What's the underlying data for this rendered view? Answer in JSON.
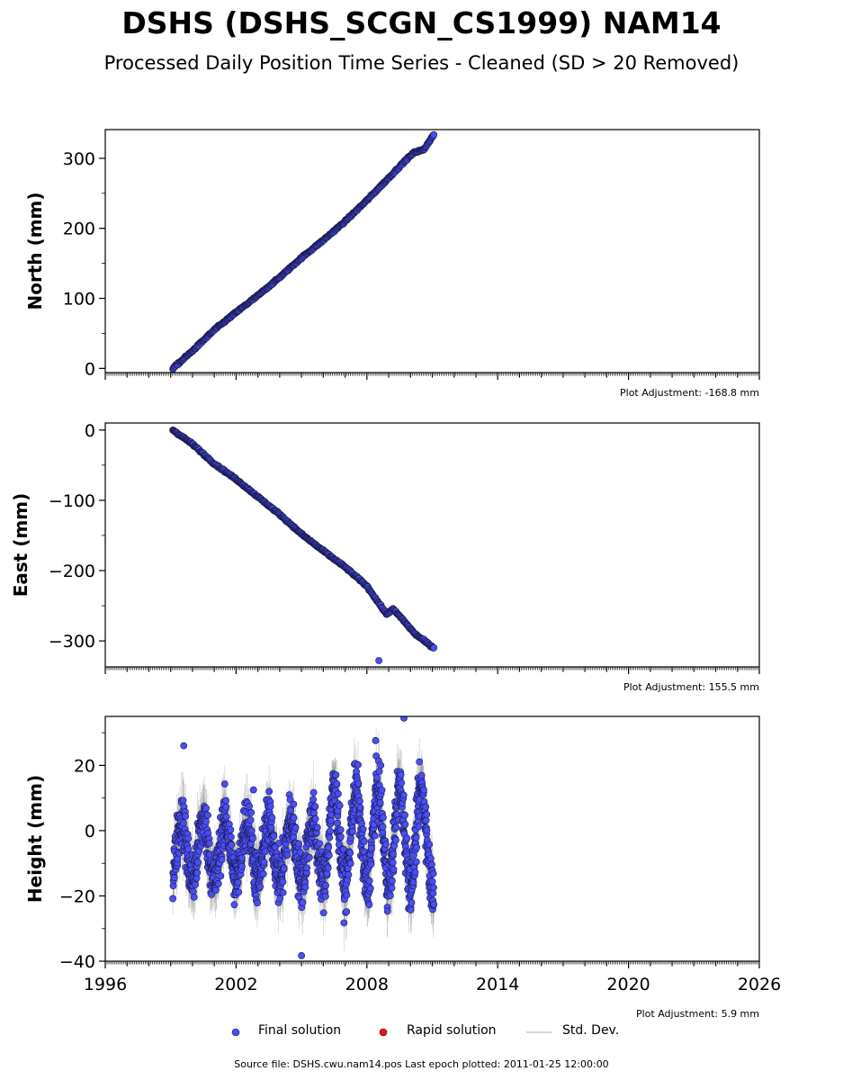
{
  "title": "DSHS (DSHS_SCGN_CS1999) NAM14",
  "subtitle": "Processed Daily Position Time Series - Cleaned (SD > 20 Removed)",
  "legend": {
    "final": "Final solution",
    "rapid": "Rapid solution",
    "std": "Std. Dev."
  },
  "footer": "Source file: DSHS.cwu.nam14.pos  Last epoch plotted: 2011-01-25 12:00:00",
  "colors": {
    "final": "#4a4ef5",
    "rapid": "#e8141e",
    "std": "#c8c8c8",
    "marker_edge": "#1a1a4a"
  },
  "chart_data": [
    {
      "type": "scatter",
      "name": "north",
      "ylabel": "North (mm)",
      "adjustment": "Plot Adjustment: -168.8 mm",
      "xlim": [
        1996,
        2026
      ],
      "ylim": [
        -6,
        341
      ],
      "yticks": [
        0,
        100,
        200,
        300
      ],
      "ytick_labels": [
        "0",
        "100",
        "200",
        "300"
      ],
      "trend": [
        [
          1999.1,
          0
        ],
        [
          2000.0,
          25
        ],
        [
          2001.0,
          55
        ],
        [
          2002.0,
          80
        ],
        [
          2003.0,
          104
        ],
        [
          2004.0,
          130
        ],
        [
          2005.0,
          158
        ],
        [
          2006.0,
          183
        ],
        [
          2007.0,
          210
        ],
        [
          2008.0,
          240
        ],
        [
          2009.0,
          272
        ],
        [
          2009.8,
          298
        ],
        [
          2010.2,
          309
        ],
        [
          2010.6,
          312
        ],
        [
          2011.07,
          334
        ]
      ],
      "outliers": []
    },
    {
      "type": "scatter",
      "name": "east",
      "ylabel": "East (mm)",
      "adjustment": "Plot Adjustment: 155.5 mm",
      "xlim": [
        1996,
        2026
      ],
      "ylim": [
        -337,
        10
      ],
      "yticks": [
        0,
        -100,
        -200,
        -300
      ],
      "ytick_labels": [
        "0",
        "−100",
        "−200",
        "−300"
      ],
      "trend": [
        [
          1999.1,
          0
        ],
        [
          2000.0,
          -20
        ],
        [
          2001.0,
          -48
        ],
        [
          2002.0,
          -70
        ],
        [
          2003.0,
          -95
        ],
        [
          2004.0,
          -120
        ],
        [
          2005.0,
          -148
        ],
        [
          2006.0,
          -172
        ],
        [
          2007.0,
          -195
        ],
        [
          2008.0,
          -222
        ],
        [
          2008.9,
          -262
        ],
        [
          2009.2,
          -255
        ],
        [
          2009.6,
          -268
        ],
        [
          2010.2,
          -290
        ],
        [
          2011.07,
          -310
        ]
      ],
      "outliers": [
        [
          2008.55,
          -328
        ]
      ]
    },
    {
      "type": "scatter",
      "name": "height",
      "ylabel": "Height (mm)",
      "adjustment": "Plot Adjustment: 5.9 mm",
      "xlim": [
        1996,
        2026
      ],
      "ylim": [
        -40,
        35
      ],
      "yticks": [
        -40,
        -20,
        0,
        20
      ],
      "ytick_labels": [
        "−40",
        "−20",
        "0",
        "20"
      ],
      "xticks": [
        1996,
        2002,
        2008,
        2014,
        2020,
        2026
      ],
      "xtick_labels": [
        "1996",
        "2002",
        "2008",
        "2014",
        "2020",
        "2026"
      ],
      "time_range": [
        1999.1,
        2011.07
      ],
      "annual_amplitude": 9,
      "noise": 6,
      "outliers": [
        [
          2005.0,
          -38.3
        ],
        [
          2008.4,
          27.6
        ],
        [
          2009.7,
          34.5
        ],
        [
          2002.8,
          12.5
        ],
        [
          1999.6,
          26.0
        ]
      ]
    }
  ]
}
